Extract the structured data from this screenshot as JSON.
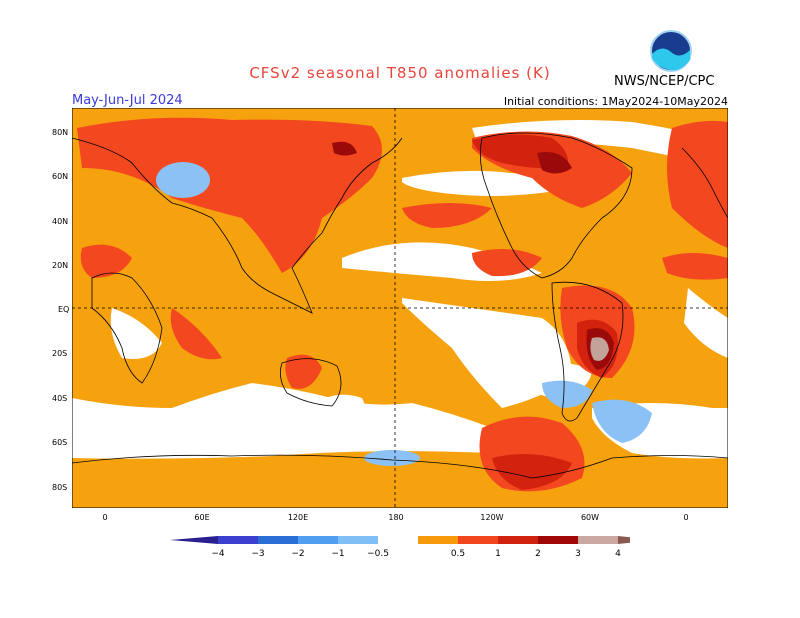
{
  "header": {
    "title": "CFSv2 seasonal T850 anomalies (K)",
    "season": "May-Jun-Jul 2024",
    "initial_conditions": "Initial conditions: 1May2024-10May2024",
    "agency": "NWS/NCEP/CPC",
    "logo_text": "NOAA"
  },
  "axes": {
    "lat_labels": [
      "80N",
      "60N",
      "40N",
      "20N",
      "EQ",
      "20S",
      "40S",
      "60S",
      "80S"
    ],
    "lon_labels": [
      "0",
      "60E",
      "120E",
      "180",
      "120W",
      "60W",
      "0"
    ]
  },
  "legend": {
    "tick_labels": [
      "−4",
      "−3",
      "−2",
      "−1",
      "−0.5",
      "0.5",
      "1",
      "2",
      "3",
      "4"
    ],
    "colors": [
      "#2a1f8f",
      "#3b3fcf",
      "#2a6fd6",
      "#4f9ef0",
      "#7fbff5",
      "#ffffff",
      "#f59a0a",
      "#f2461d",
      "#d0220f",
      "#a00808",
      "#c8a8a0",
      "#8a5a50"
    ]
  },
  "field_colors": {
    "light_orange": "#f6a10e",
    "red_orange": "#f3481f",
    "red": "#d3230f",
    "dark_red": "#9a0a0a",
    "brown": "#c3a29a",
    "light_blue": "#8cc1f5",
    "white": "#ffffff"
  }
}
